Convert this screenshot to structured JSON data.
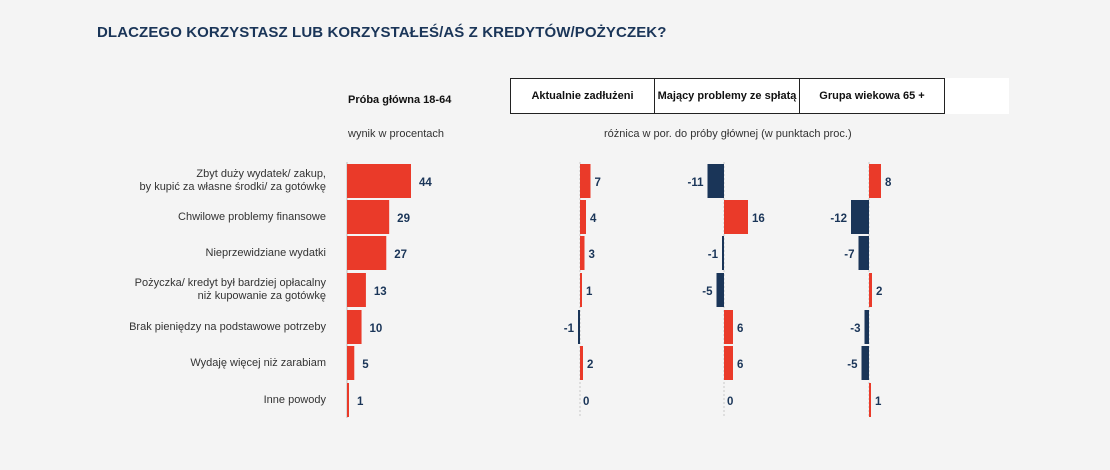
{
  "title": "DLACZEGO KORZYSTASZ LUB KORZYSTAŁEŚ/AŚ Z KREDYTÓW/POŻYCZEK?",
  "main_header": "Próba główna 18-64",
  "group_headers": [
    "Aktualnie zadłużeni",
    "Mający problemy ze spłatą",
    "Grupa wiekowa 65 +"
  ],
  "subtitle_main": "wynik w procentach",
  "subtitle_diff": "różnica w por. do próby głównej (w punktach proc.)",
  "colors": {
    "positive": "#ea3a29",
    "negative": "#1a3558",
    "title": "#1a3558"
  },
  "chart_data": [
    {
      "type": "bar",
      "orientation": "horizontal",
      "title": "Próba główna 18-64",
      "subtitle": "wynik w procentach",
      "categories": [
        "Zbyt duży wydatek/ zakup, by kupić za własne środki/ za gotówkę",
        "Chwilowe problemy finansowe",
        "Nieprzewidziane wydatki",
        "Pożyczka/ kredyt był bardziej opłacalny niż kupowanie za gotówkę",
        "Brak pieniędzy na podstawowe potrzeby",
        "Wydaję więcej niż zarabiam",
        "Inne powody"
      ],
      "values": [
        44,
        29,
        27,
        13,
        10,
        5,
        1
      ]
    },
    {
      "type": "bar",
      "orientation": "horizontal",
      "title": "różnica w por. do próby głównej (w punktach proc.)",
      "categories": [
        "Zbyt duży wydatek/ zakup, by kupić za własne środki/ za gotówkę",
        "Chwilowe problemy finansowe",
        "Nieprzewidziane wydatki",
        "Pożyczka/ kredyt był bardziej opłacalny niż kupowanie za gotówkę",
        "Brak pieniędzy na podstawowe potrzeby",
        "Wydaję więcej niż zarabiam",
        "Inne powody"
      ],
      "series": [
        {
          "name": "Aktualnie zadłużeni",
          "values": [
            7,
            4,
            3,
            1,
            -1,
            2,
            0
          ]
        },
        {
          "name": "Mający problemy ze spłatą",
          "values": [
            -11,
            16,
            -1,
            -5,
            6,
            6,
            0
          ]
        },
        {
          "name": "Grupa wiekowa 65 +",
          "values": [
            8,
            -12,
            -7,
            2,
            -3,
            -5,
            1
          ]
        }
      ]
    }
  ],
  "category_lines": [
    [
      "Zbyt duży wydatek/ zakup,",
      "by kupić za własne środki/ za gotówkę"
    ],
    [
      "Chwilowe problemy finansowe"
    ],
    [
      "Nieprzewidziane wydatki"
    ],
    [
      "Pożyczka/ kredyt był bardziej opłacalny",
      "niż kupowanie za gotówkę"
    ],
    [
      "Brak pieniędzy na podstawowe potrzeby"
    ],
    [
      "Wydaję więcej niż zarabiam"
    ],
    [
      "Inne powody"
    ]
  ]
}
